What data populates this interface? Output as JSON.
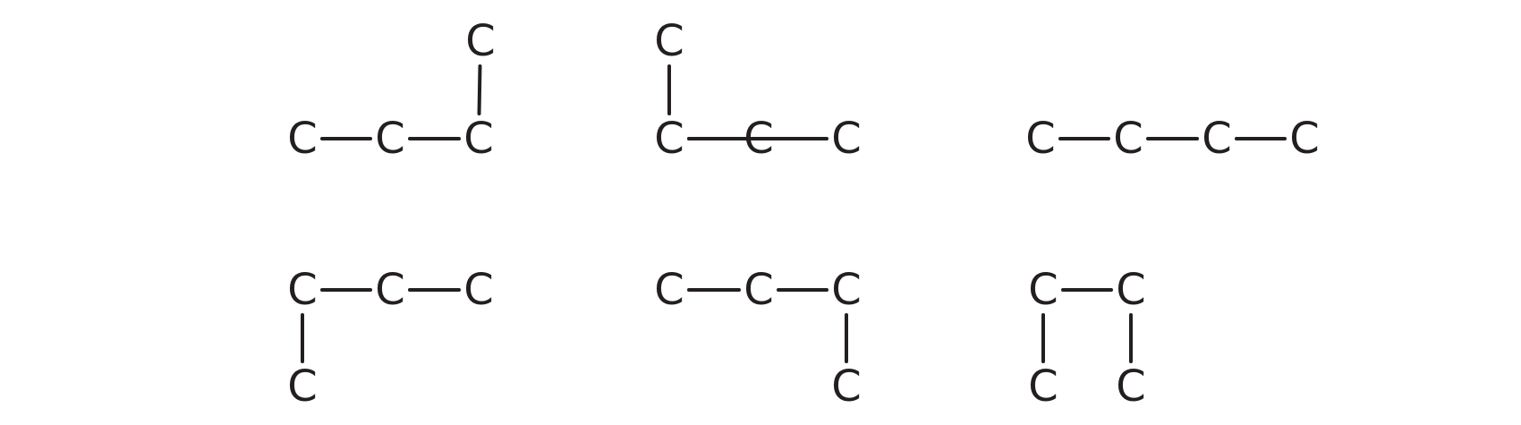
{
  "colors": {
    "ink": "#231f20",
    "background": "#ffffff"
  },
  "molecules": [
    {
      "name": "structure-1",
      "atoms": [
        "C",
        "C",
        "C",
        "C"
      ],
      "bonds": [
        [
          0,
          1
        ],
        [
          1,
          2
        ],
        [
          2,
          3
        ]
      ]
    },
    {
      "name": "structure-2",
      "atoms": [
        "C",
        "C",
        "C",
        "C"
      ],
      "bonds": [
        [
          0,
          1
        ],
        [
          1,
          2
        ],
        [
          1,
          3
        ]
      ]
    },
    {
      "name": "structure-3",
      "atoms": [
        "C",
        "C",
        "C",
        "C"
      ],
      "bonds": [
        [
          0,
          1
        ],
        [
          1,
          2
        ],
        [
          2,
          3
        ]
      ]
    },
    {
      "name": "structure-4",
      "atoms": [
        "C",
        "C",
        "C",
        "C"
      ],
      "bonds": [
        [
          0,
          1
        ],
        [
          1,
          2
        ],
        [
          0,
          3
        ]
      ]
    },
    {
      "name": "structure-5",
      "atoms": [
        "C",
        "C",
        "C",
        "C"
      ],
      "bonds": [
        [
          0,
          1
        ],
        [
          1,
          2
        ],
        [
          2,
          3
        ]
      ]
    },
    {
      "name": "structure-6",
      "atoms": [
        "C",
        "C",
        "C",
        "C"
      ],
      "bonds": [
        [
          0,
          1
        ],
        [
          0,
          2
        ],
        [
          1,
          3
        ]
      ]
    }
  ]
}
